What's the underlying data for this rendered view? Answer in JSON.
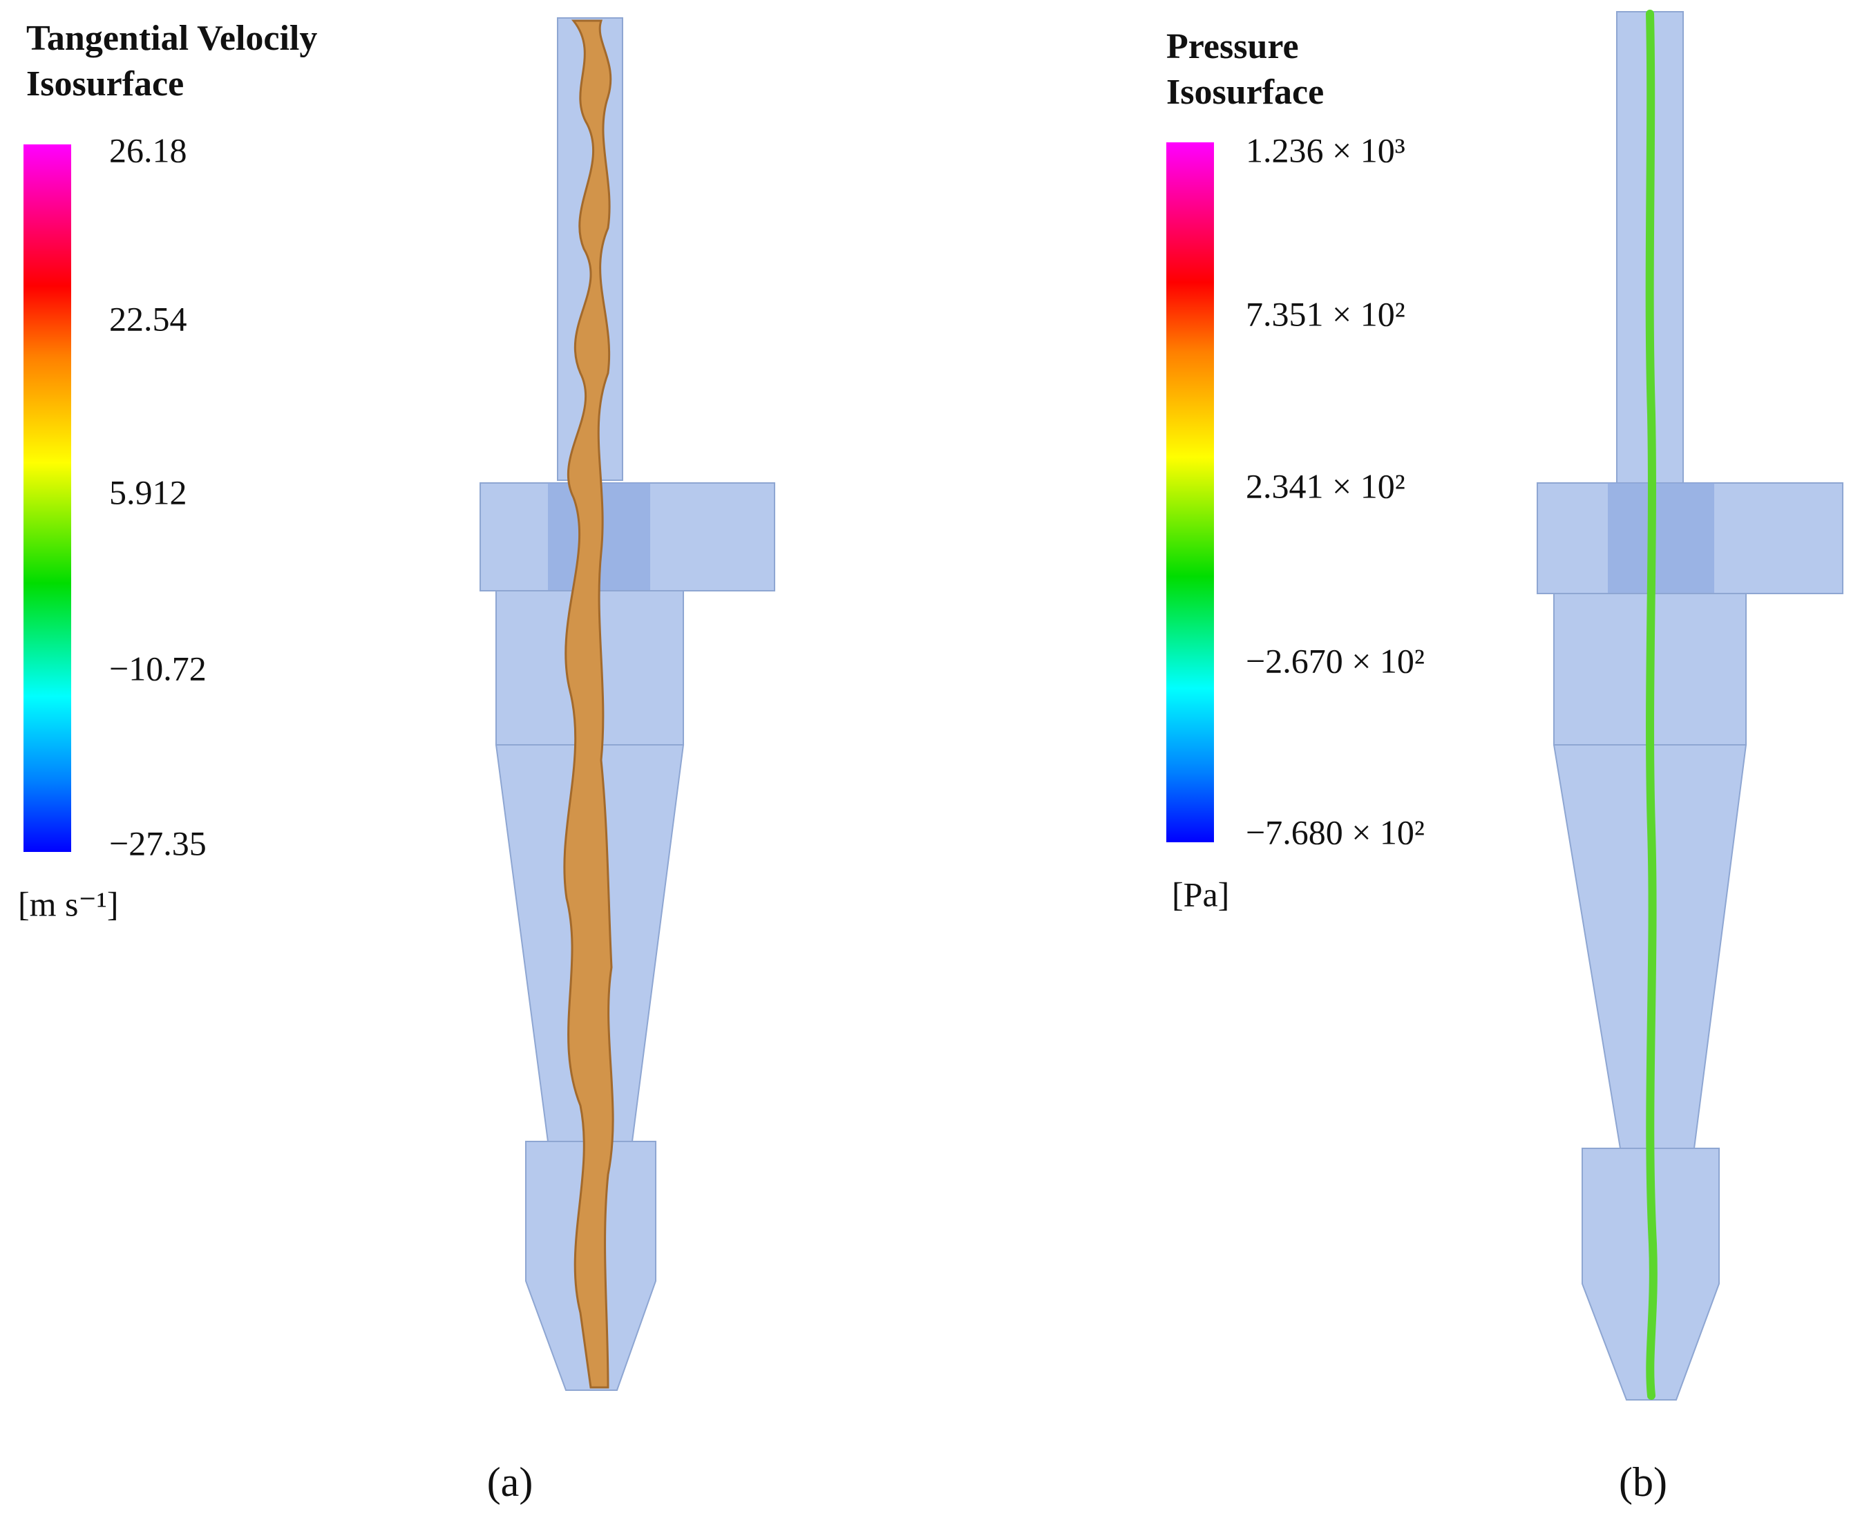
{
  "panels": [
    {
      "legend": {
        "title_lines": [
          "Tangential Velocily",
          "Isosurface"
        ],
        "ticks": [
          "26.18",
          "22.54",
          "5.912",
          "−10.72",
          "−27.35"
        ],
        "unit": "[m s⁻¹]"
      },
      "caption": "(a)"
    },
    {
      "legend": {
        "title_lines": [
          "Pressure",
          "Isosurface"
        ],
        "ticks": [
          "1.236 × 10³",
          "7.351 × 10²",
          "2.341 × 10²",
          "−2.670 × 10²",
          "−7.680 × 10²"
        ],
        "unit": "[Pa]"
      },
      "caption": "(b)"
    }
  ]
}
